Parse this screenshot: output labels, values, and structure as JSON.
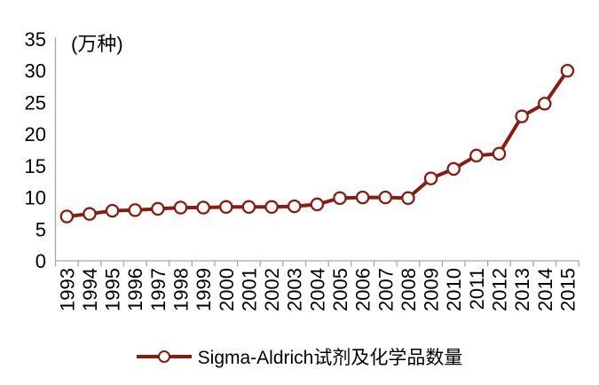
{
  "chart_data": {
    "type": "line",
    "title": "",
    "ylabel": "(万种)",
    "xlabel": "",
    "categories": [
      "1993",
      "1994",
      "1995",
      "1996",
      "1997",
      "1998",
      "1999",
      "2000",
      "2001",
      "2002",
      "2003",
      "2004",
      "2005",
      "2006",
      "2007",
      "2008",
      "2009",
      "2010",
      "2011",
      "2012",
      "2013",
      "2014",
      "2015"
    ],
    "series": [
      {
        "name": "Sigma-Aldrich试剂及化学品数量",
        "values": [
          7.0,
          7.4,
          7.9,
          8.0,
          8.2,
          8.4,
          8.4,
          8.5,
          8.5,
          8.5,
          8.6,
          8.9,
          9.9,
          10.0,
          10.0,
          9.9,
          13.0,
          14.5,
          16.6,
          16.9,
          22.8,
          24.8,
          30.0
        ]
      }
    ],
    "ylim": [
      0,
      35
    ],
    "yticks": [
      0,
      5,
      10,
      15,
      20,
      25,
      30,
      35
    ],
    "grid": false,
    "legend_position": "bottom",
    "marker": "open-circle",
    "colors": {
      "series": "#8B1A10",
      "axis": "#A6A6A6",
      "text": "#000000",
      "background": "#FFFFFF"
    }
  }
}
